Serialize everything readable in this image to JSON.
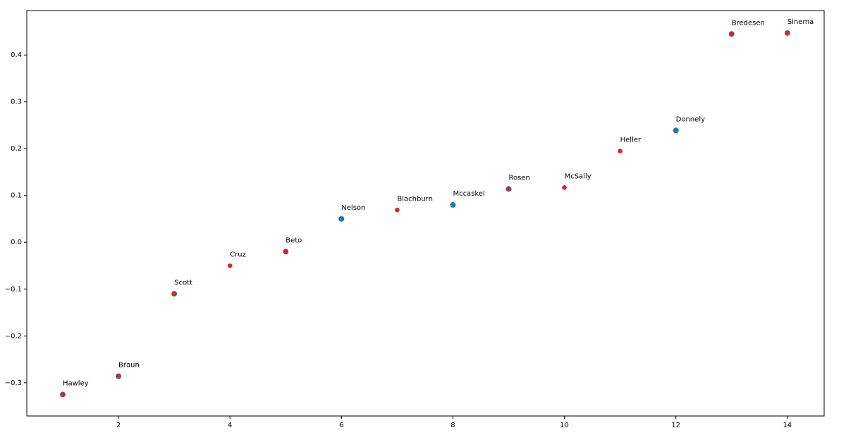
{
  "chart_data": {
    "type": "scatter",
    "x": [
      1,
      2,
      3,
      4,
      5,
      6,
      7,
      8,
      9,
      10,
      11,
      12,
      13,
      14
    ],
    "labels": [
      "Hawley",
      "Braun",
      "Scott",
      "Cruz",
      "Beto",
      "Nelson",
      "Blachburn",
      "Mccaskel",
      "Rosen",
      "McSally",
      "Heller",
      "Donnely",
      "Bredesen",
      "Sinema"
    ],
    "series": [
      {
        "color": "#1f77b4",
        "values": [
          -0.325,
          -0.286,
          -0.11,
          null,
          -0.02,
          0.05,
          null,
          0.08,
          0.114,
          null,
          null,
          0.239,
          0.445,
          0.447
        ]
      },
      {
        "color": "#d62728",
        "values": [
          -0.325,
          -0.286,
          -0.11,
          -0.05,
          -0.02,
          null,
          0.069,
          null,
          0.114,
          0.117,
          0.195,
          null,
          0.445,
          0.447
        ]
      }
    ],
    "xlim": [
      0.355,
      14.66
    ],
    "ylim": [
      -0.371,
      0.495
    ],
    "xticks": [
      2,
      4,
      6,
      8,
      10,
      12,
      14
    ],
    "yticks": [
      {
        "value": -0.3,
        "label": "−0.3"
      },
      {
        "value": -0.2,
        "label": "−0.2"
      },
      {
        "value": -0.1,
        "label": "−0.1"
      },
      {
        "value": 0,
        "label": "0.0"
      },
      0.1,
      0.2,
      0.3,
      0.4
    ]
  }
}
